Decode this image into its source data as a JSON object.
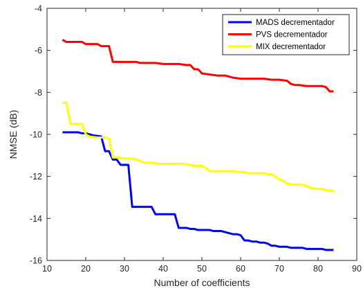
{
  "chart_data": {
    "type": "line",
    "title": "",
    "xlabel": "Number of coefficients",
    "ylabel": "NMSE (dB)",
    "xlim": [
      10,
      90
    ],
    "ylim": [
      -16,
      -4
    ],
    "xticks": [
      10,
      20,
      30,
      40,
      50,
      60,
      70,
      80,
      90
    ],
    "yticks": [
      -16,
      -14,
      -12,
      -10,
      -8,
      -6,
      -4
    ],
    "xtick_labels": [
      "10",
      "20",
      "30",
      "40",
      "50",
      "60",
      "70",
      "80",
      "90"
    ],
    "ytick_labels": [
      "-16",
      "-14",
      "-12",
      "-10",
      "-8",
      "-6",
      "-4"
    ],
    "grid": false,
    "legend_position": "top-right",
    "series": [
      {
        "name": "MADS decrementador",
        "color": "#0000ff",
        "x": [
          14,
          16,
          18,
          19,
          20,
          21,
          22,
          24,
          25,
          26,
          27,
          28,
          29,
          30,
          31,
          32,
          33,
          34,
          35,
          36,
          37,
          38,
          39,
          40,
          41,
          42,
          43,
          44,
          45,
          46,
          47,
          48,
          49,
          50,
          51,
          52,
          53,
          54,
          55,
          56,
          57,
          58,
          59,
          60,
          61,
          62,
          63,
          64,
          65,
          66,
          67,
          68,
          69,
          70,
          71,
          72,
          73,
          74,
          75,
          76,
          77,
          78,
          79,
          80,
          81,
          82,
          83,
          84
        ],
        "y": [
          -9.9,
          -9.9,
          -9.9,
          -9.95,
          -9.95,
          -10.0,
          -10.05,
          -10.1,
          -10.8,
          -10.8,
          -11.2,
          -11.2,
          -11.45,
          -11.45,
          -11.45,
          -13.45,
          -13.45,
          -13.45,
          -13.45,
          -13.45,
          -13.45,
          -13.8,
          -13.8,
          -13.8,
          -13.8,
          -13.8,
          -13.8,
          -14.45,
          -14.45,
          -14.45,
          -14.5,
          -14.5,
          -14.55,
          -14.55,
          -14.55,
          -14.55,
          -14.6,
          -14.6,
          -14.6,
          -14.65,
          -14.7,
          -14.75,
          -14.75,
          -14.8,
          -15.05,
          -15.05,
          -15.1,
          -15.1,
          -15.15,
          -15.15,
          -15.2,
          -15.3,
          -15.3,
          -15.35,
          -15.35,
          -15.35,
          -15.4,
          -15.4,
          -15.4,
          -15.4,
          -15.45,
          -15.45,
          -15.45,
          -15.45,
          -15.45,
          -15.5,
          -15.5,
          -15.5
        ]
      },
      {
        "name": "PVS decrementador",
        "color": "#ff0000",
        "x": [
          14,
          15,
          17,
          19,
          20,
          22,
          23,
          24,
          26,
          27,
          29,
          31,
          33,
          34,
          36,
          38,
          40,
          42,
          44,
          46,
          47,
          48,
          49,
          50,
          52,
          54,
          56,
          58,
          60,
          62,
          64,
          66,
          68,
          70,
          72,
          73,
          74,
          75,
          77,
          79,
          81,
          82,
          83,
          84
        ],
        "y": [
          -5.5,
          -5.6,
          -5.6,
          -5.6,
          -5.7,
          -5.7,
          -5.7,
          -5.8,
          -5.8,
          -6.55,
          -6.55,
          -6.55,
          -6.55,
          -6.6,
          -6.6,
          -6.6,
          -6.65,
          -6.65,
          -6.65,
          -6.7,
          -6.7,
          -6.9,
          -6.9,
          -7.1,
          -7.15,
          -7.2,
          -7.2,
          -7.3,
          -7.35,
          -7.35,
          -7.35,
          -7.35,
          -7.4,
          -7.4,
          -7.45,
          -7.6,
          -7.65,
          -7.65,
          -7.7,
          -7.7,
          -7.7,
          -7.75,
          -7.95,
          -7.95
        ]
      },
      {
        "name": "MIX decrementador",
        "color": "#ffff00",
        "x": [
          14,
          15,
          16,
          18,
          19,
          20,
          21,
          23,
          25,
          26,
          27,
          28,
          30,
          32,
          34,
          35,
          37,
          39,
          41,
          43,
          45,
          47,
          48,
          50,
          51,
          52,
          54,
          56,
          58,
          60,
          61,
          62,
          64,
          66,
          67,
          68,
          70,
          71,
          72,
          74,
          76,
          77,
          78,
          80,
          81,
          82,
          84
        ],
        "y": [
          -8.5,
          -8.5,
          -9.5,
          -9.5,
          -9.5,
          -10.0,
          -10.1,
          -10.15,
          -10.15,
          -10.2,
          -11.1,
          -11.1,
          -11.15,
          -11.15,
          -11.25,
          -11.35,
          -11.35,
          -11.4,
          -11.4,
          -11.4,
          -11.4,
          -11.45,
          -11.5,
          -11.5,
          -11.6,
          -11.75,
          -11.75,
          -11.75,
          -11.75,
          -11.8,
          -11.8,
          -11.85,
          -11.85,
          -11.85,
          -11.9,
          -11.9,
          -12.15,
          -12.2,
          -12.35,
          -12.4,
          -12.4,
          -12.45,
          -12.55,
          -12.6,
          -12.6,
          -12.65,
          -12.7
        ]
      }
    ]
  }
}
